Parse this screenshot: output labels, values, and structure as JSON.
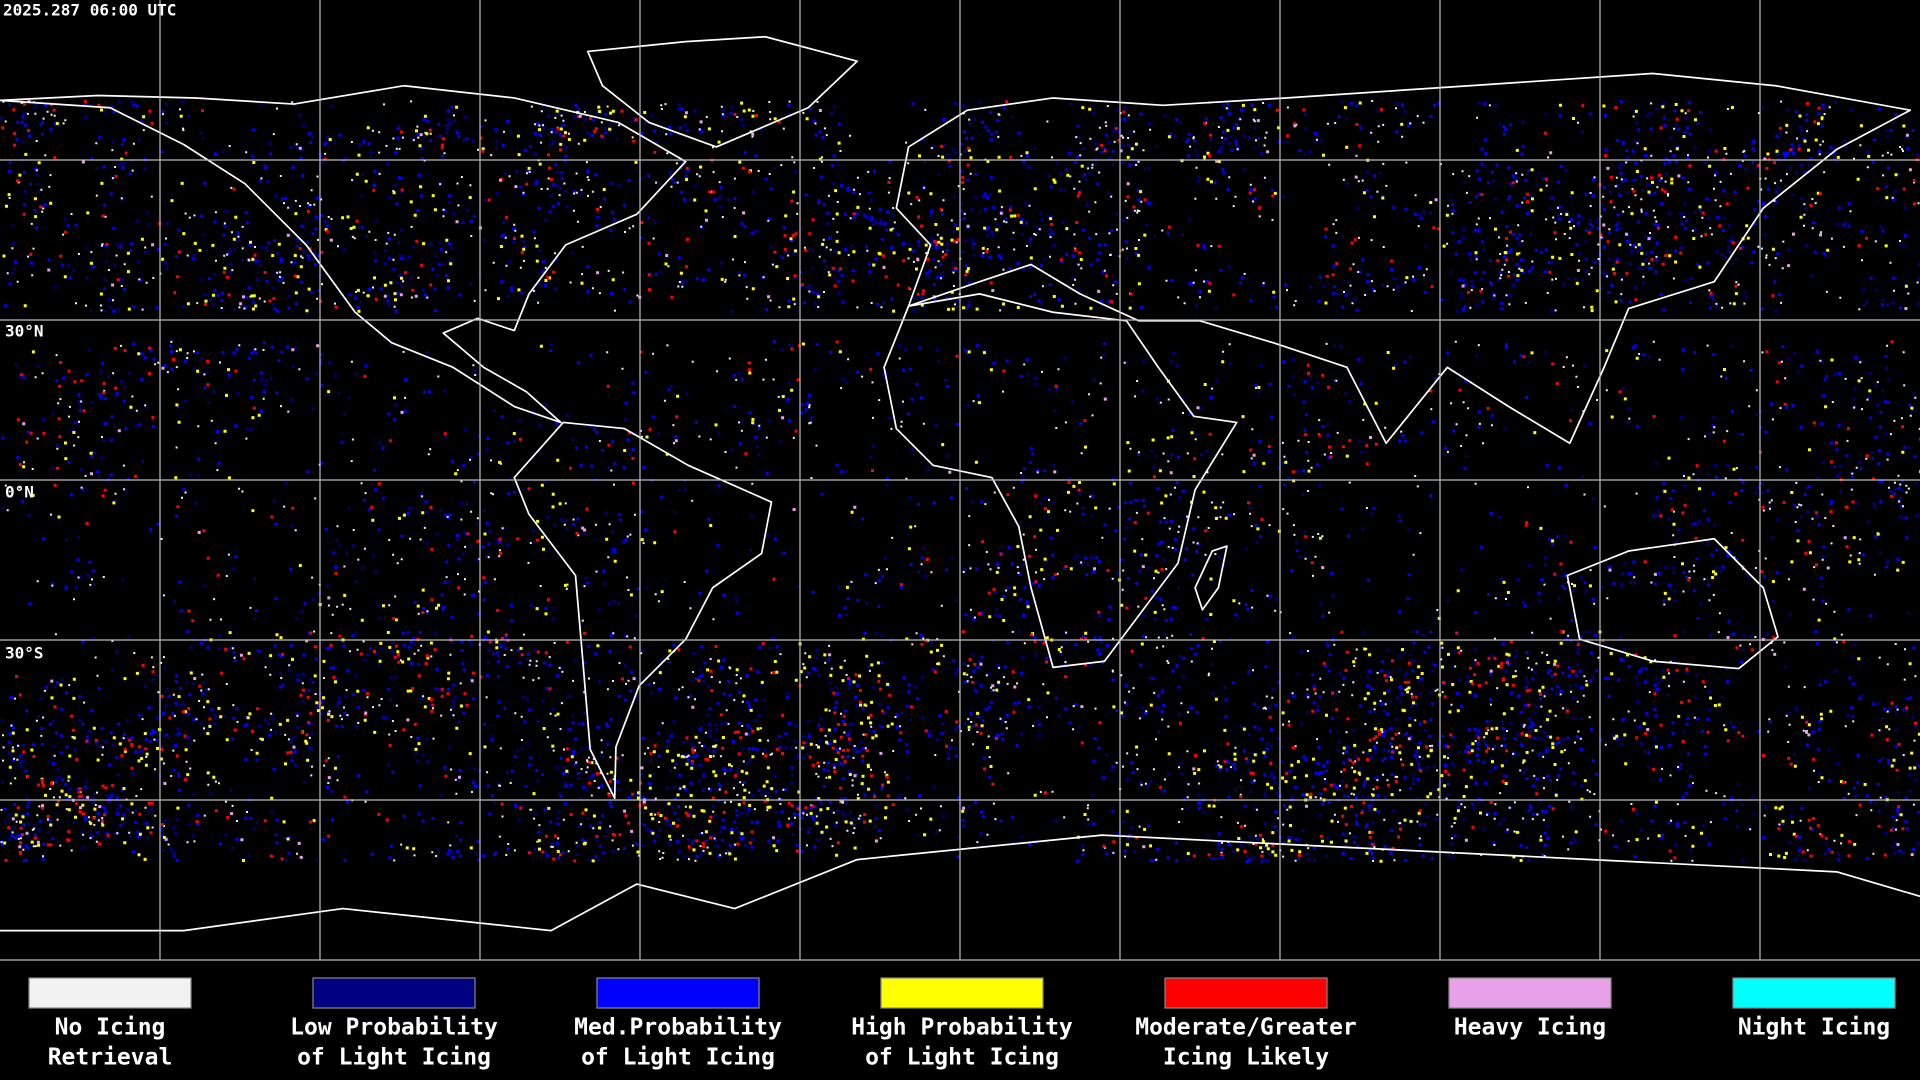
{
  "header": {
    "timestamp": "2025.287 06:00 UTC"
  },
  "map": {
    "latitude_labels": [
      "30°N",
      "0°N",
      "30°S"
    ]
  },
  "legend": {
    "items": [
      {
        "lines": [
          "No Icing",
          "Retrieval"
        ],
        "color": "#f2f2f2"
      },
      {
        "lines": [
          "Low Probability",
          "of Light Icing"
        ],
        "color": "#000080"
      },
      {
        "lines": [
          "Med.Probability",
          "of Light Icing"
        ],
        "color": "#0000ff"
      },
      {
        "lines": [
          "High Probability",
          "of Light Icing"
        ],
        "color": "#ffff00"
      },
      {
        "lines": [
          "Moderate/Greater",
          "Icing Likely"
        ],
        "color": "#ff0000"
      },
      {
        "lines": [
          "Heavy Icing"
        ],
        "color": "#e8a0e8"
      },
      {
        "lines": [
          "Night Icing"
        ],
        "color": "#00ffff"
      }
    ]
  }
}
